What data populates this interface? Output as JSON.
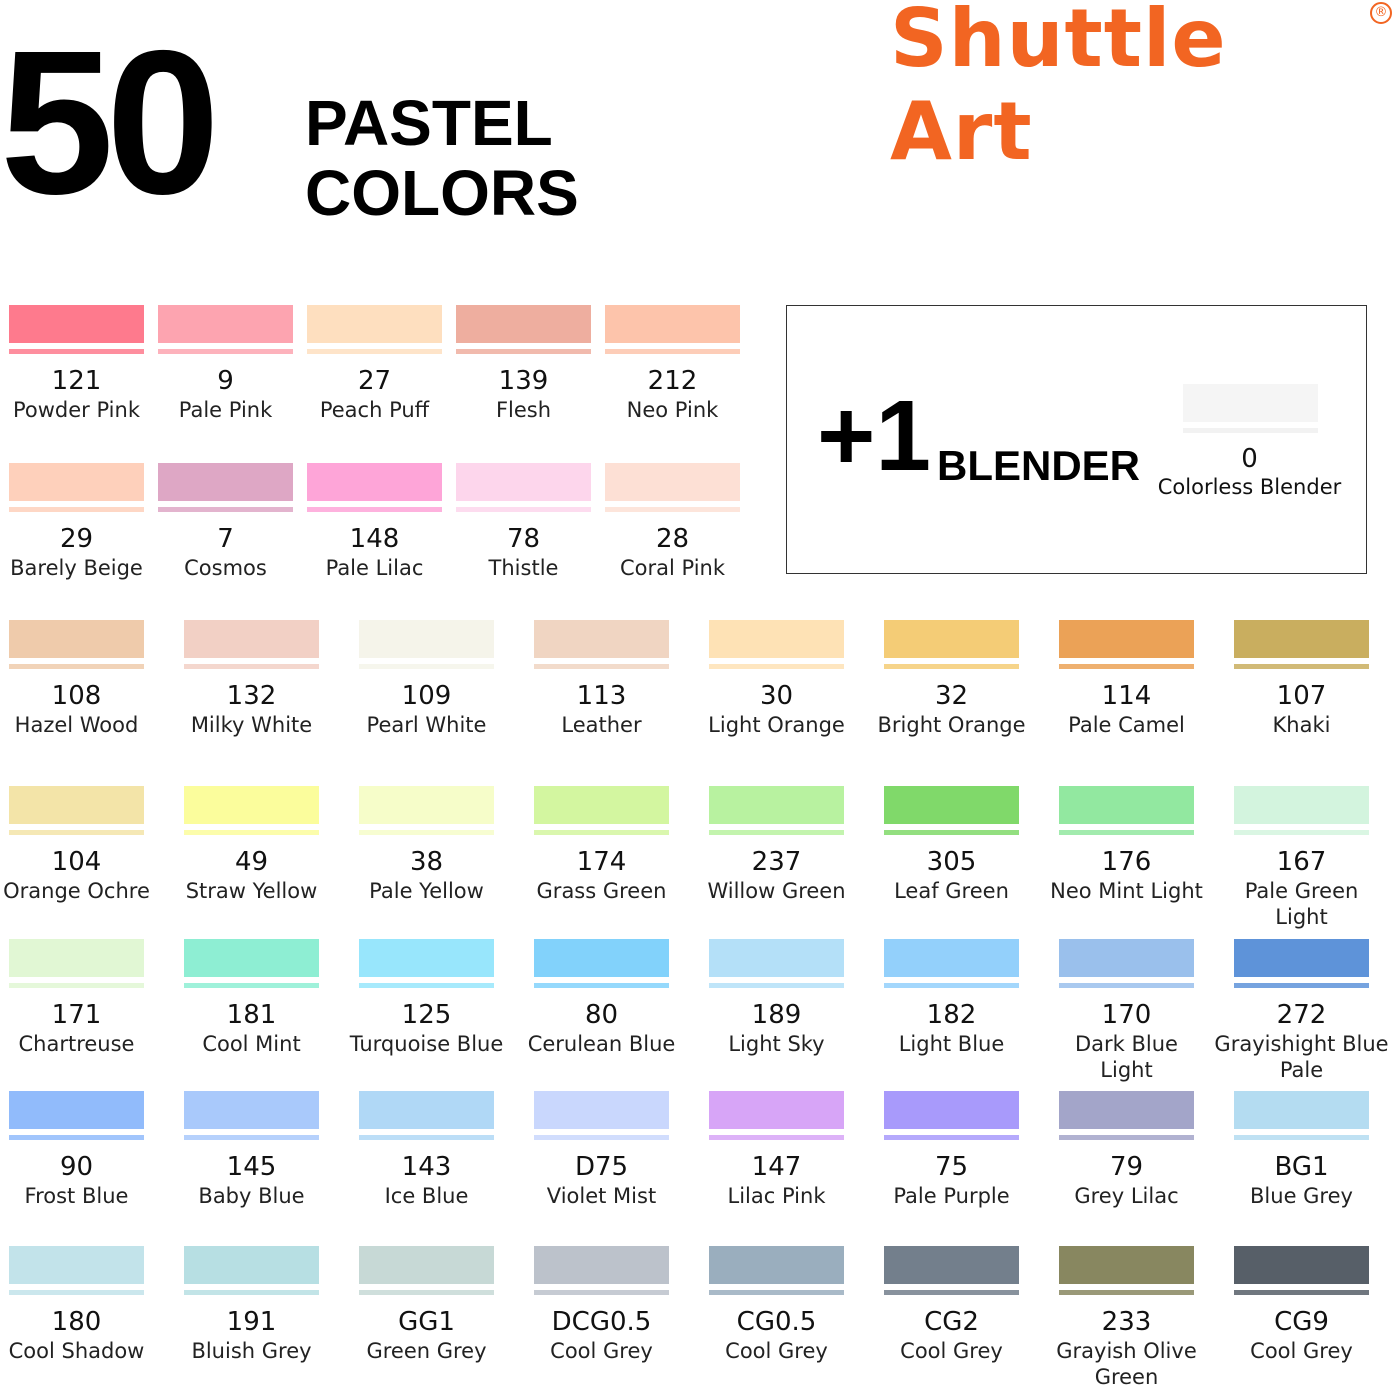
{
  "header": {
    "count": "50",
    "title_line1": "PASTEL",
    "title_line2": "COLORS"
  },
  "brand": {
    "name": "Shuttle Art",
    "registered": "®",
    "color": "#f26522"
  },
  "blender": {
    "plus": "+1",
    "label": "BLENDER",
    "number": "0",
    "name": "Colorless Blender",
    "color": "#f5f5f5"
  },
  "rows": [
    [
      {
        "num": "121",
        "name": "Powder Pink",
        "color": "#fe7a8d"
      },
      {
        "num": "9",
        "name": "Pale Pink",
        "color": "#fda4b0"
      },
      {
        "num": "27",
        "name": "Peach Puff",
        "color": "#fedfbf"
      },
      {
        "num": "139",
        "name": "Flesh",
        "color": "#eeae9f"
      },
      {
        "num": "212",
        "name": "Neo Pink",
        "color": "#fdc4ab"
      }
    ],
    [
      {
        "num": "29",
        "name": "Barely Beige",
        "color": "#fed0bb"
      },
      {
        "num": "7",
        "name": "Cosmos",
        "color": "#dea7c5"
      },
      {
        "num": "148",
        "name": "Pale Lilac",
        "color": "#fea5d8"
      },
      {
        "num": "78",
        "name": "Thistle",
        "color": "#fdd6ec"
      },
      {
        "num": "28",
        "name": "Coral Pink",
        "color": "#fde0d5"
      }
    ],
    [
      {
        "num": "108",
        "name": "Hazel Wood",
        "color": "#efcbab"
      },
      {
        "num": "132",
        "name": "Milky White",
        "color": "#f2d0c5"
      },
      {
        "num": "109",
        "name": "Pearl White",
        "color": "#f5f4ea"
      },
      {
        "num": "113",
        "name": "Leather",
        "color": "#f0d5c2"
      },
      {
        "num": "30",
        "name": "Light Orange",
        "color": "#fee2b5"
      },
      {
        "num": "32",
        "name": "Bright Orange",
        "color": "#f4cc76"
      },
      {
        "num": "114",
        "name": "Pale Camel",
        "color": "#eba257"
      },
      {
        "num": "107",
        "name": "Khaki",
        "color": "#c9ae5f"
      }
    ],
    [
      {
        "num": "104",
        "name": "Orange Ochre",
        "color": "#f3e4a8"
      },
      {
        "num": "49",
        "name": "Straw Yellow",
        "color": "#fbfd9c"
      },
      {
        "num": "38",
        "name": "Pale Yellow",
        "color": "#f6fdc9"
      },
      {
        "num": "174",
        "name": "Grass Green",
        "color": "#d3f6a0"
      },
      {
        "num": "237",
        "name": "Willow Green",
        "color": "#b8f2a0"
      },
      {
        "num": "305",
        "name": "Leaf Green",
        "color": "#80d96a"
      },
      {
        "num": "176",
        "name": "Neo Mint Light",
        "color": "#92e8a0"
      },
      {
        "num": "167",
        "name": "Pale Green\nLight",
        "color": "#d3f4de"
      }
    ],
    [
      {
        "num": "171",
        "name": "Chartreuse",
        "color": "#e1f7d4"
      },
      {
        "num": "181",
        "name": "Cool Mint",
        "color": "#8eeed3"
      },
      {
        "num": "125",
        "name": "Turquoise Blue",
        "color": "#98e6fc"
      },
      {
        "num": "80",
        "name": "Cerulean Blue",
        "color": "#82d2fb"
      },
      {
        "num": "189",
        "name": "Light Sky",
        "color": "#b4e0f8"
      },
      {
        "num": "182",
        "name": "Light Blue",
        "color": "#93d0fb"
      },
      {
        "num": "170",
        "name": "Dark Blue\nLight",
        "color": "#9ac0ec"
      },
      {
        "num": "272",
        "name": "Grayishight Blue\nPale",
        "color": "#5e93d9"
      }
    ],
    [
      {
        "num": "90",
        "name": "Frost Blue",
        "color": "#91bbfb"
      },
      {
        "num": "145",
        "name": "Baby Blue",
        "color": "#a9c9fb"
      },
      {
        "num": "143",
        "name": "Ice Blue",
        "color": "#b0d8f6"
      },
      {
        "num": "D75",
        "name": "Violet Mist",
        "color": "#c9d7fd"
      },
      {
        "num": "147",
        "name": "Lilac Pink",
        "color": "#d7a5f7"
      },
      {
        "num": "75",
        "name": "Pale Purple",
        "color": "#a89afb"
      },
      {
        "num": "79",
        "name": "Grey Lilac",
        "color": "#a3a5c9"
      },
      {
        "num": "BG1",
        "name": "Blue Grey",
        "color": "#b4dcf1"
      }
    ],
    [
      {
        "num": "180",
        "name": "Cool Shadow",
        "color": "#c2e3ea"
      },
      {
        "num": "191",
        "name": "Bluish Grey",
        "color": "#b7dfe3"
      },
      {
        "num": "GG1",
        "name": "Green Grey",
        "color": "#c7d9d6"
      },
      {
        "num": "DCG0.5",
        "name": "Cool Grey",
        "color": "#bcc2cb"
      },
      {
        "num": "CG0.5",
        "name": "Cool Grey",
        "color": "#9aaebe"
      },
      {
        "num": "CG2",
        "name": "Cool Grey",
        "color": "#737f8c"
      },
      {
        "num": "233",
        "name": "Grayish Olive Green",
        "color": "#888760"
      },
      {
        "num": "CG9",
        "name": "Cool Grey",
        "color": "#575f68"
      }
    ]
  ]
}
